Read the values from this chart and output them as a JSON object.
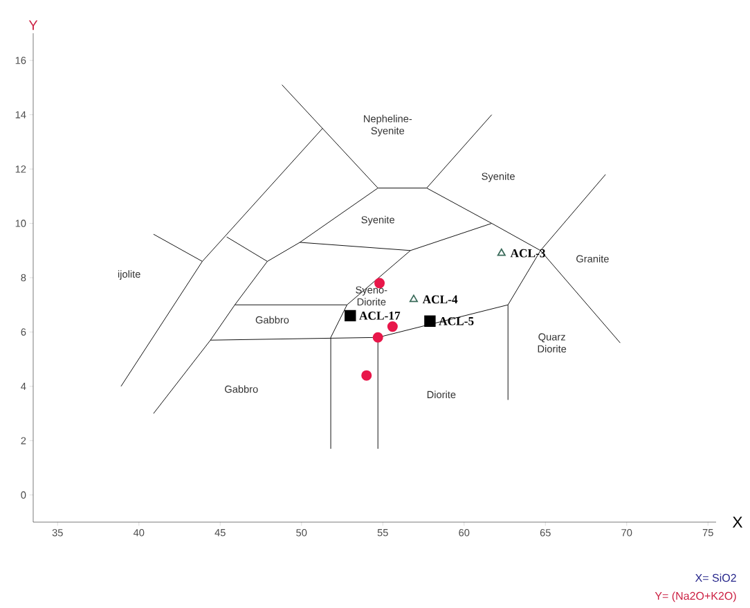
{
  "chart_data": {
    "type": "scatter",
    "xlabel": "X",
    "ylabel": "Y",
    "xlim": [
      33.5,
      75.5
    ],
    "ylim": [
      -1,
      17
    ],
    "xticks": [
      35,
      40,
      45,
      50,
      55,
      60,
      65,
      70,
      75
    ],
    "yticks": [
      0,
      2,
      4,
      6,
      8,
      10,
      12,
      14,
      16
    ],
    "series": [
      {
        "type": "line",
        "color": "#000000",
        "x": [
          38.9,
          43.9,
          51.3
        ],
        "values": [
          4.0,
          8.6,
          13.5
        ]
      },
      {
        "type": "line",
        "color": "#000000",
        "x": [
          40.9,
          43.9
        ],
        "values": [
          9.6,
          8.6
        ]
      },
      {
        "type": "line",
        "color": "#000000",
        "x": [
          48.8,
          54.7
        ],
        "values": [
          15.1,
          11.3
        ]
      },
      {
        "type": "line",
        "color": "#000000",
        "x": [
          45.4,
          47.9
        ],
        "values": [
          9.5,
          8.6
        ]
      },
      {
        "type": "line",
        "color": "#000000",
        "x": [
          40.9,
          44.4,
          45.9,
          47.9,
          49.9,
          54.7
        ],
        "values": [
          3.0,
          5.7,
          7.0,
          8.6,
          9.3,
          11.3
        ]
      },
      {
        "type": "line",
        "color": "#000000",
        "x": [
          54.7,
          57.7
        ],
        "values": [
          11.3,
          11.3
        ]
      },
      {
        "type": "line",
        "color": "#000000",
        "x": [
          57.7,
          61.7
        ],
        "values": [
          11.3,
          14.0
        ]
      },
      {
        "type": "line",
        "color": "#000000",
        "x": [
          57.7,
          61.7,
          64.7,
          69.6
        ],
        "values": [
          11.3,
          10.0,
          9.0,
          5.6
        ]
      },
      {
        "type": "line",
        "color": "#000000",
        "x": [
          49.9,
          56.7,
          61.7
        ],
        "values": [
          9.3,
          9.0,
          10.0
        ]
      },
      {
        "type": "line",
        "color": "#000000",
        "x": [
          56.7,
          52.8,
          51.8,
          51.8
        ],
        "values": [
          9.0,
          7.0,
          5.8,
          1.7
        ]
      },
      {
        "type": "line",
        "color": "#000000",
        "x": [
          45.9,
          52.8
        ],
        "values": [
          7.0,
          7.0
        ]
      },
      {
        "type": "line",
        "color": "#000000",
        "x": [
          44.4,
          54.7
        ],
        "values": [
          5.7,
          5.8
        ]
      },
      {
        "type": "line",
        "color": "#000000",
        "x": [
          54.7,
          54.7
        ],
        "values": [
          5.8,
          1.7
        ]
      },
      {
        "type": "line",
        "color": "#000000",
        "x": [
          54.7,
          62.7
        ],
        "values": [
          5.8,
          7.0
        ]
      },
      {
        "type": "line",
        "color": "#000000",
        "x": [
          62.7,
          62.7
        ],
        "values": [
          7.0,
          3.5
        ]
      },
      {
        "type": "line",
        "color": "#000000",
        "x": [
          62.7,
          64.7,
          68.7
        ],
        "values": [
          7.0,
          9.0,
          11.8
        ]
      },
      {
        "marker": "circle",
        "color": "#e8174a",
        "x": [
          54.8,
          55.6,
          54.7,
          54.0
        ],
        "values": [
          7.8,
          6.2,
          5.8,
          4.4
        ]
      },
      {
        "marker": "square",
        "color": "#000000",
        "x": [
          53.0,
          57.9
        ],
        "values": [
          6.6,
          6.4
        ]
      },
      {
        "marker": "triangle",
        "color": "#3a6b5a",
        "x": [
          56.9,
          62.3
        ],
        "values": [
          7.2,
          8.9
        ]
      }
    ],
    "annotations": [
      "Nepheline-Syenite",
      "Syenite",
      "Syenite",
      "ijolite",
      "Granite",
      "Syeno-Diorite",
      "Gabbro",
      "Gabbro",
      "Quarz Diorite",
      "Diorite",
      {
        "text": "ACL-17",
        "x": 53.0,
        "y": 6.6
      },
      {
        "text": "ACL-5",
        "x": 57.9,
        "y": 6.4
      },
      {
        "text": "ACL-4",
        "x": 56.9,
        "y": 7.2
      },
      {
        "text": "ACL-3",
        "x": 62.3,
        "y": 8.9
      },
      "X= SiO2",
      "Y= (Na2O+K2O)"
    ]
  }
}
